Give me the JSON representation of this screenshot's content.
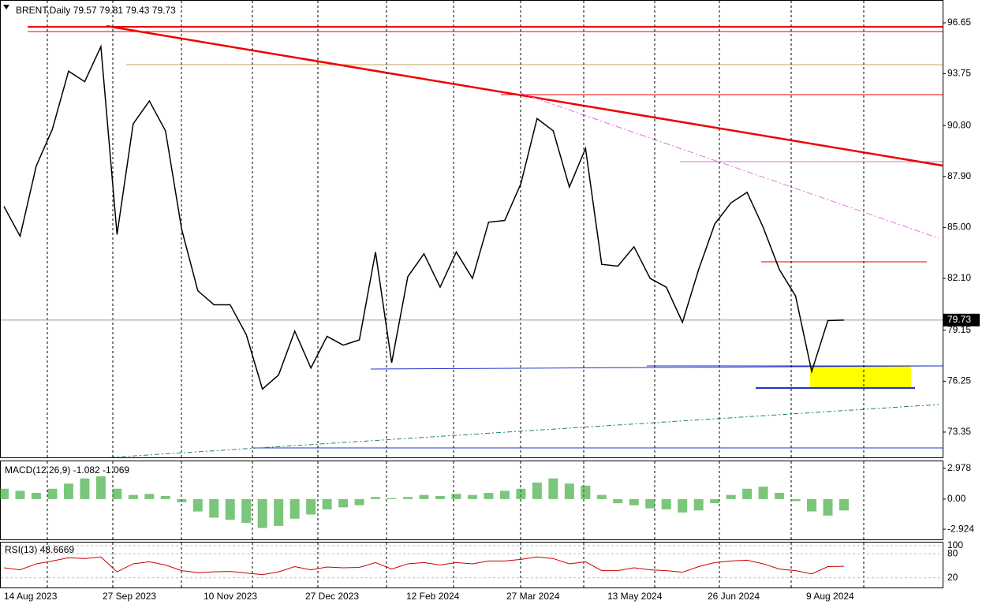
{
  "chart_data": {
    "type": "line",
    "title": "BRENT,Daily  79.57 79.81 79.43 79.73",
    "current_price": 79.73,
    "series": [
      {
        "name": "BRENT",
        "color": "#000000",
        "values": [
          86.2,
          84.5,
          88.5,
          90.6,
          93.9,
          93.3,
          95.3,
          84.6,
          90.9,
          92.2,
          90.5,
          84.9,
          81.4,
          80.6,
          80.6,
          78.9,
          75.8,
          76.6,
          79.1,
          77.0,
          78.8,
          78.3,
          78.6,
          83.6,
          77.3,
          82.2,
          83.5,
          81.6,
          83.6,
          82.1,
          85.3,
          85.4,
          87.5,
          91.2,
          90.5,
          87.3,
          89.5,
          82.9,
          82.8,
          83.9,
          82.1,
          81.6,
          79.6,
          82.6,
          85.2,
          86.4,
          87.0,
          85.0,
          82.6,
          81.1,
          76.8,
          79.7,
          79.73
        ]
      }
    ],
    "ylim": [
      71.91,
      97.95
    ],
    "yticks": [
      96.65,
      93.75,
      {
        "value": 90.8,
        "label": "90.80"
      },
      {
        "value": 87.9,
        "label": "87.90"
      },
      {
        "value": 85,
        "label": "85.00"
      },
      {
        "value": 82.1,
        "label": "82.10"
      },
      79.15,
      76.25,
      73.35
    ],
    "x_labels": [
      "14 Aug 2023",
      "27 Sep 2023",
      "10 Nov 2023",
      "27 Dec 2023",
      "12 Feb 2024",
      "27 Mar 2024",
      "13 May 2024",
      "26 Jun 2024",
      "9 Aug 2024"
    ],
    "macd": {
      "label": "MACD(12,26,9) -1.082 -1.069",
      "color": "#22a022",
      "values": [
        1.0,
        0.8,
        0.6,
        1.0,
        1.5,
        2.0,
        2.2,
        1.0,
        0.4,
        0.5,
        0.3,
        -0.3,
        -1.2,
        -1.8,
        -2.0,
        -2.3,
        -2.8,
        -2.6,
        -1.9,
        -1.5,
        -1.0,
        -0.8,
        -0.6,
        0.2,
        0.1,
        0.2,
        0.4,
        0.3,
        0.5,
        0.4,
        0.6,
        0.8,
        1.0,
        1.6,
        2.0,
        1.5,
        1.3,
        0.4,
        -0.4,
        -0.6,
        -0.9,
        -1.0,
        -1.3,
        -1.1,
        -0.4,
        0.4,
        1.0,
        1.2,
        0.6,
        -0.2,
        -1.2,
        -1.6,
        -1.1
      ],
      "ylim": [
        -3.908,
        3.659
      ],
      "yticks": [
        2.978,
        {
          "value": 0,
          "label": "0.00"
        },
        -2.924
      ]
    },
    "rsi": {
      "label": "RSI(13) 48.6669",
      "color": "#cc0000",
      "values": [
        45,
        40,
        55,
        62,
        70,
        68,
        72,
        35,
        55,
        60,
        52,
        38,
        33,
        35,
        36,
        32,
        28,
        35,
        48,
        40,
        47,
        45,
        46,
        58,
        42,
        55,
        58,
        52,
        58,
        55,
        62,
        62,
        66,
        72,
        68,
        55,
        60,
        38,
        38,
        45,
        40,
        38,
        34,
        48,
        58,
        62,
        64,
        55,
        42,
        38,
        30,
        48,
        48.67
      ],
      "ylim": [
        0,
        100
      ],
      "yticks": [
        100,
        80,
        20
      ]
    }
  }
}
